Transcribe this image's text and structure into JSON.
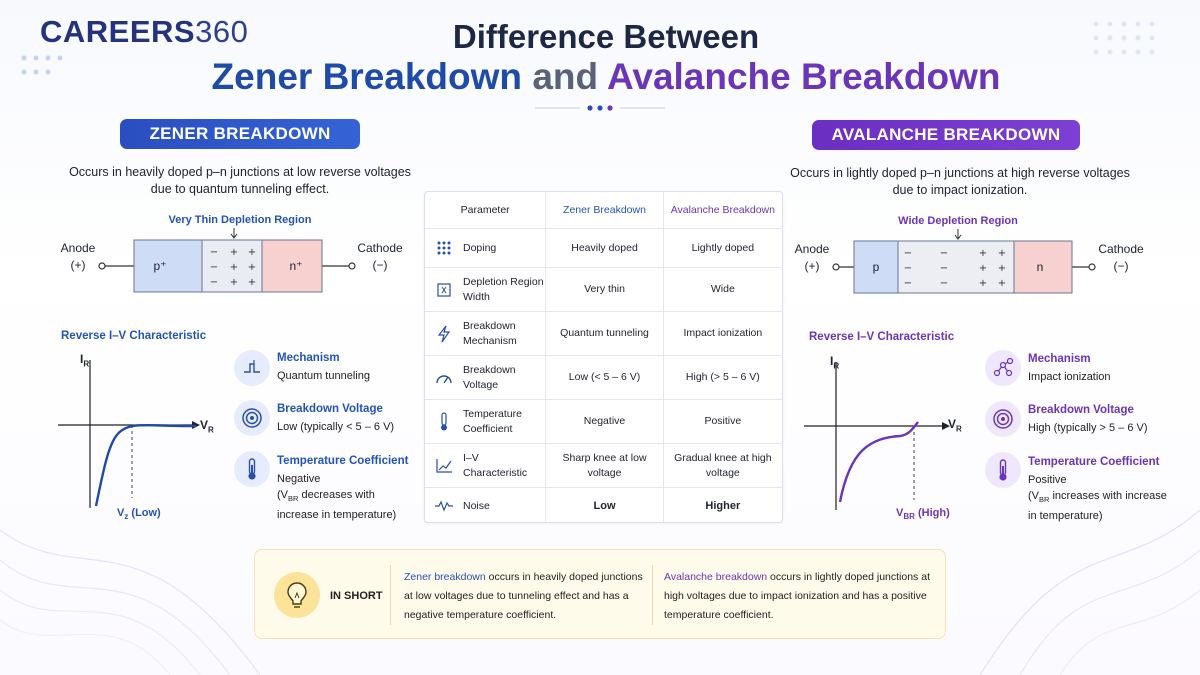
{
  "brand": {
    "part1": "CAREERS",
    "part2": "360"
  },
  "title": {
    "line1": "Difference Between",
    "zener": "Zener Breakdown",
    "and": "and",
    "avalanche": "Avalanche Breakdown"
  },
  "colors": {
    "zener": "#2453b8",
    "avalanche": "#6a35b8",
    "p_region": "#cfdcf5",
    "n_region": "#f7d0d0"
  },
  "zener": {
    "pill": "ZENER BREAKDOWN",
    "description": "Occurs in heavily doped p–n junctions at low reverse voltages due to quantum tunneling effect.",
    "depletion_label": "Very Thin Depletion Region",
    "anode": "Anode",
    "anode_sign": "(+)",
    "cathode": "Cathode",
    "cathode_sign": "(−)",
    "p_label": "p⁺",
    "n_label": "n⁺",
    "iv_title": "Reverse I–V Characteristic",
    "axis_y": "I",
    "axis_y_sub": "R",
    "axis_x": "V",
    "axis_x_sub": "R",
    "vz_label": "V",
    "vz_sub": "z",
    "vz_suffix": " (Low)",
    "props": [
      {
        "icon": "mechanism-icon",
        "title": "Mechanism",
        "value": "Quantum tunneling"
      },
      {
        "icon": "target-icon",
        "title": "Breakdown Voltage",
        "value": "Low (typically < 5 – 6 V)"
      },
      {
        "icon": "thermometer-icon",
        "title": "Temperature Coefficient",
        "value": "Negative",
        "note_pre": "(V",
        "note_sub": "BR",
        "note_post": " decreases with increase in temperature)"
      }
    ]
  },
  "avalanche": {
    "pill": "AVALANCHE BREAKDOWN",
    "description": "Occurs in lightly doped p–n junctions at high reverse voltages due to impact ionization.",
    "depletion_label": "Wide Depletion Region",
    "anode": "Anode",
    "anode_sign": "(+)",
    "cathode": "Cathode",
    "cathode_sign": "(−)",
    "p_label": "p",
    "n_label": "n",
    "iv_title": "Reverse I–V Characteristic",
    "axis_y": "I",
    "axis_y_sub": "R",
    "axis_x": "V",
    "axis_x_sub": "R",
    "vbr_label": "V",
    "vbr_sub": "BR",
    "vbr_suffix": " (High)",
    "props": [
      {
        "icon": "network-icon",
        "title": "Mechanism",
        "value": "Impact ionization"
      },
      {
        "icon": "target-icon",
        "title": "Breakdown Voltage",
        "value": "High (typically > 5 – 6 V)"
      },
      {
        "icon": "thermometer-icon",
        "title": "Temperature Coefficient",
        "value": "Positive",
        "note_pre": "(V",
        "note_sub": "BR",
        "note_post": " increases with increase in temperature)"
      }
    ]
  },
  "table": {
    "headers": [
      "Parameter",
      "Zener Breakdown",
      "Avalanche Breakdown"
    ],
    "rows": [
      {
        "icon": "doping-icon",
        "param": "Doping",
        "zener": "Heavily doped",
        "avalanche": "Lightly doped"
      },
      {
        "icon": "depletion-icon",
        "param": "Depletion Region Width",
        "zener": "Very thin",
        "avalanche": "Wide"
      },
      {
        "icon": "lightning-icon",
        "param": "Breakdown Mechanism",
        "zener": "Quantum tunneling",
        "avalanche": "Impact ionization"
      },
      {
        "icon": "gauge-icon",
        "param": "Breakdown Voltage",
        "zener": "Low (< 5 – 6 V)",
        "avalanche": "High (> 5 – 6 V)"
      },
      {
        "icon": "thermometer-icon",
        "param": "Temperature Coefficient",
        "zener": "Negative",
        "avalanche": "Positive"
      },
      {
        "icon": "graph-icon",
        "param": "I–V Characteristic",
        "zener": "Sharp knee at low voltage",
        "avalanche": "Gradual knee at high voltage"
      },
      {
        "icon": "wave-icon",
        "param": "Noise",
        "zener": "Low",
        "avalanche": "Higher"
      }
    ]
  },
  "in_short": {
    "label": "IN SHORT",
    "zener_lead": "Zener breakdown",
    "zener_text": " occurs in heavily doped junctions at low voltages due to tunneling effect and has a negative temperature coefficient.",
    "avalanche_lead": "Avalanche breakdown",
    "avalanche_text": " occurs in lightly doped junctions at high voltages due to impact ionization and has a positive temperature coefficient."
  }
}
